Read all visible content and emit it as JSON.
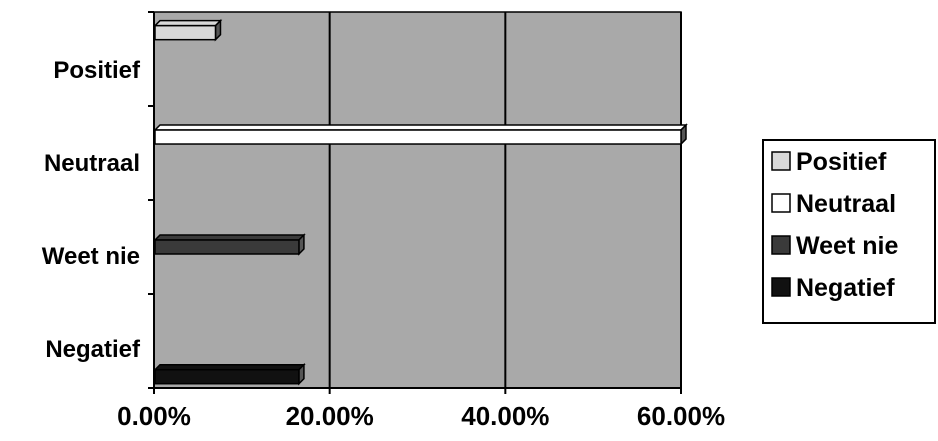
{
  "chart_data": {
    "type": "bar",
    "orientation": "horizontal",
    "categories": [
      "Positief",
      "Neutraal",
      "Weet nie",
      "Negatief"
    ],
    "values": [
      0.07,
      0.6,
      0.165,
      0.165
    ],
    "bar_colors": [
      "#d9d9d9",
      "#ffffff",
      "#3a3a3a",
      "#111111"
    ],
    "x_tick_labels": [
      "0.00%",
      "20.00%",
      "40.00%",
      "60.00%"
    ],
    "xlim": [
      0,
      0.6
    ],
    "grid": true,
    "plot_background": "#a9a9a9",
    "legend": {
      "position": "right",
      "items": [
        {
          "label": "Positief",
          "color": "#d9d9d9"
        },
        {
          "label": "Neutraal",
          "color": "#ffffff"
        },
        {
          "label": "Weet nie",
          "color": "#3a3a3a"
        },
        {
          "label": "Negatief",
          "color": "#111111"
        }
      ]
    }
  }
}
